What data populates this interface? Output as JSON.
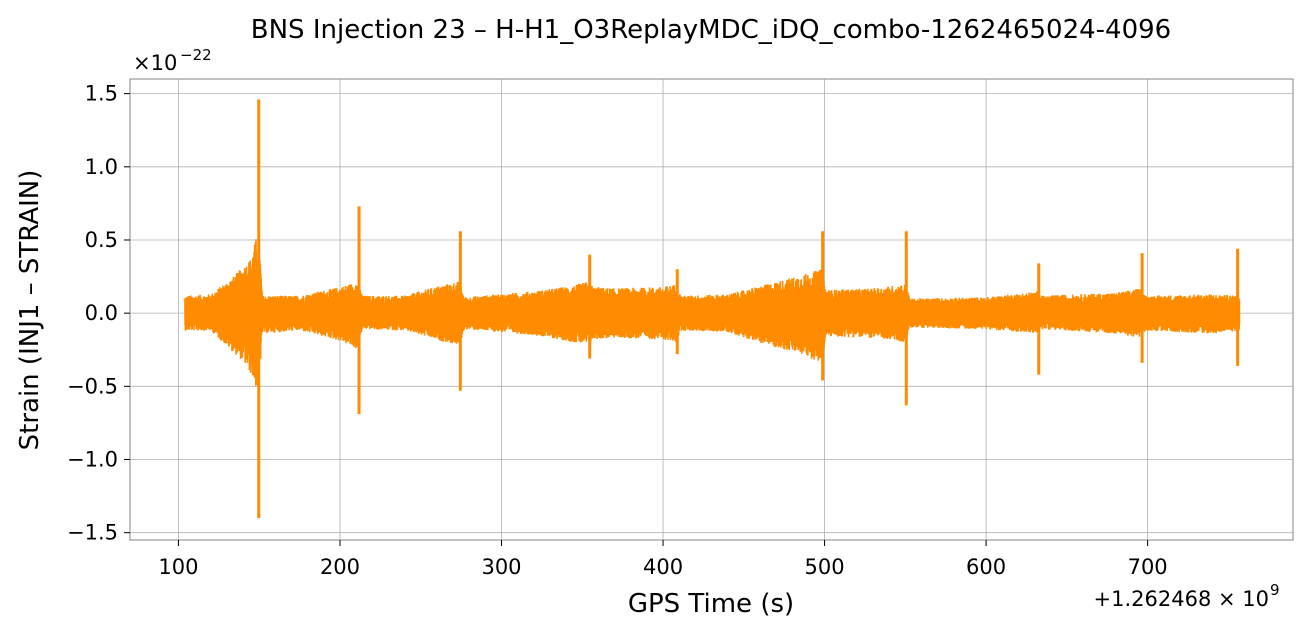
{
  "chart_data": {
    "type": "line",
    "title": "BNS Injection 23 – H-H1_O3ReplayMDC_iDQ_combo-1262465024-4096",
    "xlabel": "GPS Time (s)",
    "ylabel": "Strain (INJ1 – STRAIN)",
    "x_offset_label": "+1.262468 × 10",
    "x_offset_exponent": "9",
    "y_scale_label": "×10",
    "y_scale_exponent": "−22",
    "xlim": [
      70,
      790
    ],
    "ylim": [
      -1.55,
      1.6
    ],
    "x_ticks": [
      100,
      200,
      300,
      400,
      500,
      600,
      700
    ],
    "x_tick_labels": [
      "100",
      "200",
      "300",
      "400",
      "500",
      "600",
      "700"
    ],
    "y_ticks": [
      -1.5,
      -1.0,
      -0.5,
      0.0,
      0.5,
      1.0,
      1.5
    ],
    "y_tick_labels": [
      "−1.5",
      "−1.0",
      "−0.5",
      "0.0",
      "0.5",
      "1.0",
      "1.5"
    ],
    "grid": true,
    "series": [
      {
        "color": "#ff8c00",
        "x_range": [
          104,
          757
        ],
        "envelope_points": [
          {
            "x": 104,
            "upper": 0.12,
            "lower": -0.12
          },
          {
            "x": 120,
            "upper": 0.13,
            "lower": -0.12
          },
          {
            "x": 135,
            "upper": 0.26,
            "lower": -0.28
          },
          {
            "x": 140,
            "upper": 0.32,
            "lower": -0.33
          },
          {
            "x": 145,
            "upper": 0.38,
            "lower": -0.42
          },
          {
            "x": 149.5,
            "upper": 0.58,
            "lower": -0.55
          },
          {
            "x": 152,
            "upper": 0.12,
            "lower": -0.14
          },
          {
            "x": 175,
            "upper": 0.12,
            "lower": -0.12
          },
          {
            "x": 200,
            "upper": 0.18,
            "lower": -0.19
          },
          {
            "x": 211,
            "upper": 0.22,
            "lower": -0.25
          },
          {
            "x": 214,
            "upper": 0.12,
            "lower": -0.11
          },
          {
            "x": 240,
            "upper": 0.12,
            "lower": -0.12
          },
          {
            "x": 262,
            "upper": 0.19,
            "lower": -0.19
          },
          {
            "x": 274,
            "upper": 0.22,
            "lower": -0.22
          },
          {
            "x": 277,
            "upper": 0.11,
            "lower": -0.11
          },
          {
            "x": 320,
            "upper": 0.15,
            "lower": -0.15
          },
          {
            "x": 345,
            "upper": 0.19,
            "lower": -0.2
          },
          {
            "x": 354,
            "upper": 0.22,
            "lower": -0.22
          },
          {
            "x": 357,
            "upper": 0.18,
            "lower": -0.18
          },
          {
            "x": 370,
            "upper": 0.17,
            "lower": -0.17
          },
          {
            "x": 400,
            "upper": 0.18,
            "lower": -0.18
          },
          {
            "x": 408,
            "upper": 0.2,
            "lower": -0.2
          },
          {
            "x": 411,
            "upper": 0.12,
            "lower": -0.12
          },
          {
            "x": 440,
            "upper": 0.13,
            "lower": -0.13
          },
          {
            "x": 465,
            "upper": 0.2,
            "lower": -0.22
          },
          {
            "x": 485,
            "upper": 0.26,
            "lower": -0.28
          },
          {
            "x": 498,
            "upper": 0.3,
            "lower": -0.34
          },
          {
            "x": 501,
            "upper": 0.16,
            "lower": -0.16
          },
          {
            "x": 530,
            "upper": 0.17,
            "lower": -0.17
          },
          {
            "x": 550,
            "upper": 0.2,
            "lower": -0.2
          },
          {
            "x": 553,
            "upper": 0.1,
            "lower": -0.1
          },
          {
            "x": 600,
            "upper": 0.11,
            "lower": -0.11
          },
          {
            "x": 632,
            "upper": 0.15,
            "lower": -0.14
          },
          {
            "x": 635,
            "upper": 0.12,
            "lower": -0.11
          },
          {
            "x": 680,
            "upper": 0.14,
            "lower": -0.14
          },
          {
            "x": 696,
            "upper": 0.17,
            "lower": -0.17
          },
          {
            "x": 699,
            "upper": 0.12,
            "lower": -0.12
          },
          {
            "x": 740,
            "upper": 0.13,
            "lower": -0.14
          },
          {
            "x": 757,
            "upper": 0.12,
            "lower": -0.12
          }
        ],
        "spikes": [
          {
            "x": 149.7,
            "max": 1.46,
            "min": -1.4
          },
          {
            "x": 211.8,
            "max": 0.73,
            "min": -0.69
          },
          {
            "x": 274.5,
            "max": 0.56,
            "min": -0.53
          },
          {
            "x": 354.6,
            "max": 0.4,
            "min": -0.31
          },
          {
            "x": 408.8,
            "max": 0.3,
            "min": -0.28
          },
          {
            "x": 498.8,
            "max": 0.56,
            "min": -0.46
          },
          {
            "x": 550.6,
            "max": 0.56,
            "min": -0.63
          },
          {
            "x": 632.6,
            "max": 0.34,
            "min": -0.42
          },
          {
            "x": 696.6,
            "max": 0.41,
            "min": -0.34
          },
          {
            "x": 755.7,
            "max": 0.44,
            "min": -0.36
          }
        ]
      }
    ]
  }
}
